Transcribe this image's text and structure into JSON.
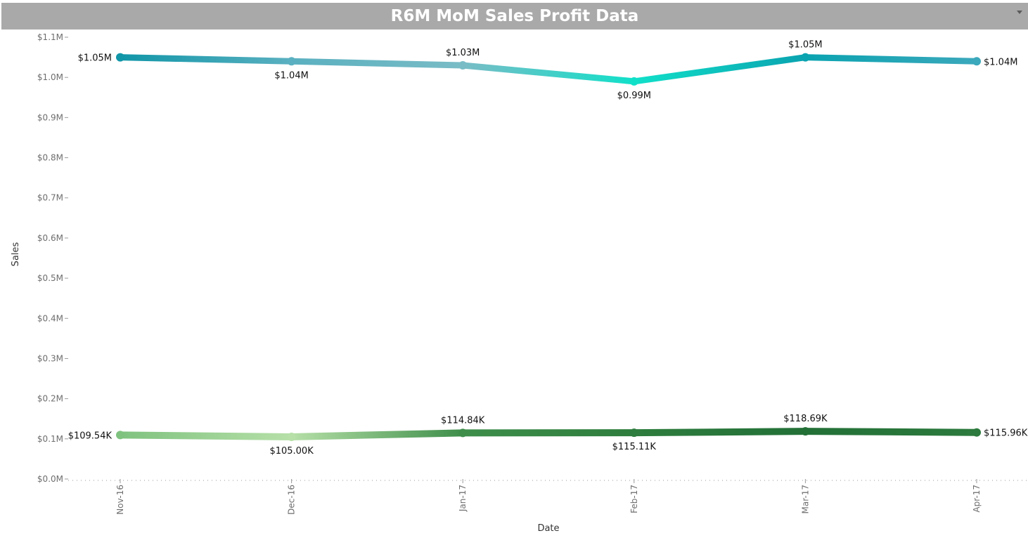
{
  "chart_data": {
    "type": "line",
    "title": "R6M MoM Sales Profit Data",
    "xlabel": "Date",
    "ylabel": "Sales",
    "categories": [
      "Nov-16",
      "Dec-16",
      "Jan-17",
      "Feb-17",
      "Mar-17",
      "Apr-17"
    ],
    "ylim": [
      0,
      1.1
    ],
    "y_unit": "$M",
    "y_ticks": [
      {
        "value": 0.0,
        "label": "$0.0M"
      },
      {
        "value": 0.1,
        "label": "$0.1M"
      },
      {
        "value": 0.2,
        "label": "$0.2M"
      },
      {
        "value": 0.3,
        "label": "$0.3M"
      },
      {
        "value": 0.4,
        "label": "$0.4M"
      },
      {
        "value": 0.5,
        "label": "$0.5M"
      },
      {
        "value": 0.6,
        "label": "$0.6M"
      },
      {
        "value": 0.7,
        "label": "$0.7M"
      },
      {
        "value": 0.8,
        "label": "$0.8M"
      },
      {
        "value": 0.9,
        "label": "$0.9M"
      },
      {
        "value": 1.0,
        "label": "$1.0M"
      },
      {
        "value": 1.1,
        "label": "$1.1M"
      }
    ],
    "grid": false,
    "legend": "none",
    "series": [
      {
        "values": [
          1.05,
          1.04,
          1.03,
          0.99,
          1.05,
          1.04
        ],
        "labels": [
          "$1.05M",
          "$1.04M",
          "$1.03M",
          "$0.99M",
          "$1.05M",
          "$1.04M"
        ],
        "label_positions": [
          "left",
          "below",
          "above",
          "below",
          "above",
          "right"
        ],
        "colors": [
          "#1196a8",
          "#5ab0c0",
          "#79bcc6",
          "#11e0c9",
          "#0aa3b0",
          "#3ba8bc"
        ]
      },
      {
        "values": [
          0.10954,
          0.105,
          0.11484,
          0.11511,
          0.11869,
          0.11596
        ],
        "labels": [
          "$109.54K",
          "$105.00K",
          "$114.84K",
          "$115.11K",
          "$118.69K",
          "$115.96K"
        ],
        "label_positions": [
          "left",
          "below",
          "above",
          "below",
          "above",
          "right"
        ],
        "colors": [
          "#7fc27f",
          "#b6e0a8",
          "#3e8e4a",
          "#2e7d3e",
          "#237037",
          "#2c7a3d"
        ]
      }
    ]
  }
}
